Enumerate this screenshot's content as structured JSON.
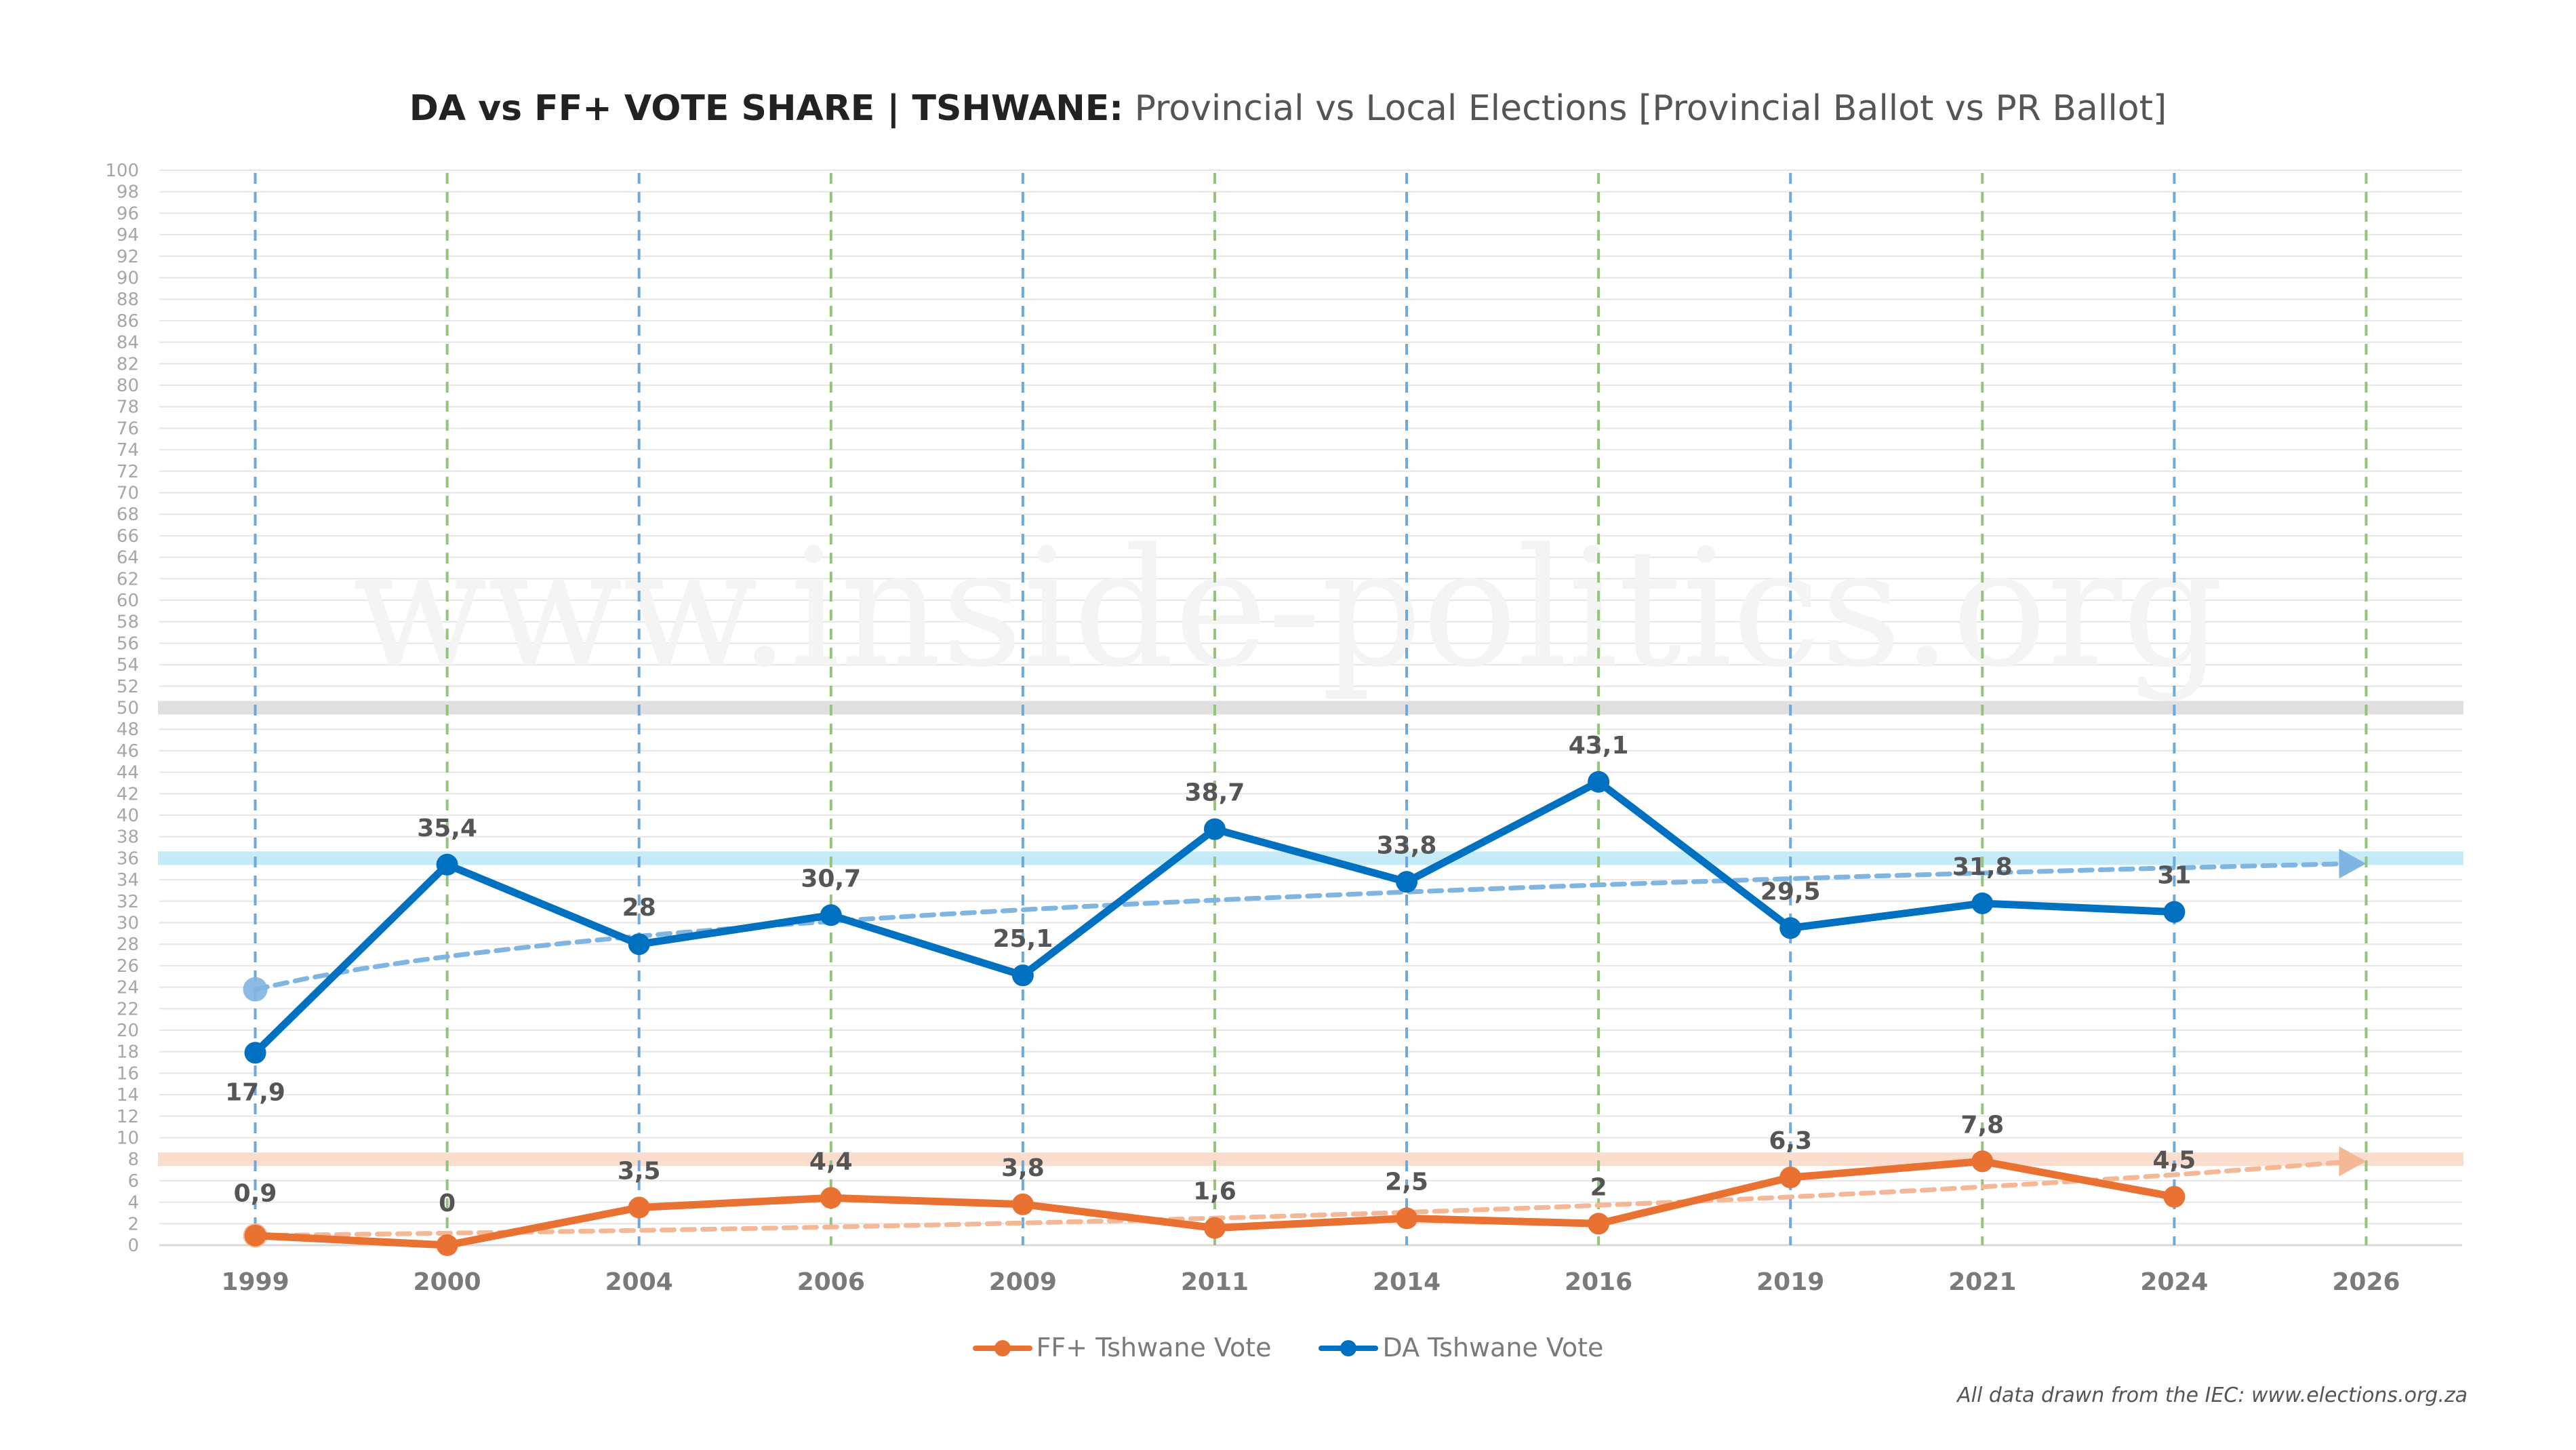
{
  "title": {
    "bold": "DA vs FF+ VOTE SHARE | TSHWANE:",
    "light": "Provincial vs Local Elections [Provincial Ballot vs PR Ballot]"
  },
  "watermark": "www.inside-politics.org",
  "footnote": "All data drawn from the IEC: www.elections.org.za",
  "colors": {
    "da": "#0070c0",
    "ff": "#e97132",
    "da_trend": "#7fb5e0",
    "ff_trend": "#f5b896",
    "provincial_gridline": "#6fa8dc",
    "local_gridline": "#93c47d",
    "majority_band": "#dddddd",
    "da_band": "#bfe8f7",
    "ff_band": "#f9d9c8"
  },
  "chart_data": {
    "type": "line",
    "title": "DA vs FF+ VOTE SHARE | TSHWANE: Provincial vs Local Elections [Provincial Ballot vs PR Ballot]",
    "xlabel": "",
    "ylabel": "",
    "ylim": [
      0,
      100
    ],
    "ytick_step": 2,
    "grid": true,
    "legend_position": "bottom-center",
    "categories": [
      "1999",
      "2000",
      "2004",
      "2006",
      "2009",
      "2011",
      "2014",
      "2016",
      "2019",
      "2021",
      "2024",
      "2026"
    ],
    "election_type": [
      "provincial",
      "local",
      "provincial",
      "local",
      "provincial",
      "local",
      "provincial",
      "local",
      "provincial",
      "local",
      "provincial",
      "local"
    ],
    "series": [
      {
        "name": "FF+ Tshwane Vote",
        "key": "ff",
        "values": [
          0.9,
          0,
          3.5,
          4.4,
          3.8,
          1.6,
          2.5,
          2,
          6.3,
          7.8,
          4.5,
          null
        ],
        "labels": [
          "0,9",
          "0",
          "3,5",
          "4,4",
          "3,8",
          "1,6",
          "2,5",
          "2",
          "6,3",
          "7,8",
          "4,5",
          ""
        ]
      },
      {
        "name": "DA Tshwane Vote",
        "key": "da",
        "values": [
          17.9,
          35.4,
          28,
          30.7,
          25.1,
          38.7,
          33.8,
          43.1,
          29.5,
          31.8,
          31,
          null
        ],
        "labels": [
          "17,9",
          "35,4",
          "28",
          "30,7",
          "25,1",
          "38,7",
          "33,8",
          "43,1",
          "29,5",
          "31,8",
          "31",
          ""
        ]
      }
    ],
    "trendlines": [
      {
        "series": "DA Tshwane Vote",
        "start": 23.8,
        "end": 35.5,
        "shape": "logarithmic",
        "arrow": true
      },
      {
        "series": "FF+ Tshwane Vote",
        "start": 0.9,
        "end": 7.8,
        "shape": "exponential",
        "arrow": true
      }
    ],
    "reference_bands": [
      {
        "name": "majority-line",
        "value": 50
      },
      {
        "name": "da-projection-band",
        "value": 36
      },
      {
        "name": "ff-projection-band",
        "value": 8
      }
    ]
  }
}
